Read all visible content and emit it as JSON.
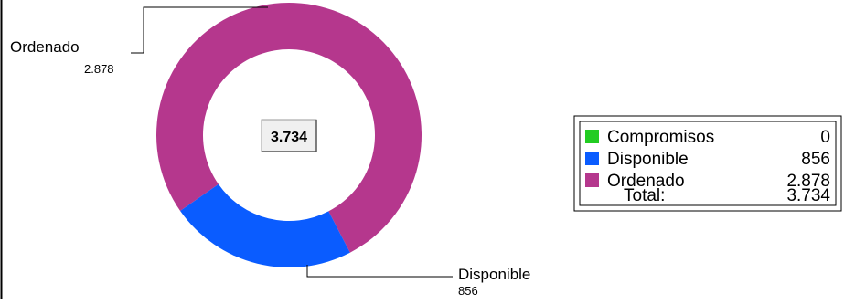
{
  "chart_data": {
    "type": "pie",
    "variant": "donut",
    "center_total": "3.734",
    "slices": [
      {
        "label": "Compromisos",
        "value": 0,
        "value_label": "0",
        "color": "#22cc22"
      },
      {
        "label": "Disponible",
        "value": 856,
        "value_label": "856",
        "color": "#0a5cff"
      },
      {
        "label": "Ordenado",
        "value": 2878,
        "value_label": "2.878",
        "color": "#b5378d"
      }
    ],
    "legend": {
      "placement": "right",
      "total_label": "Total:",
      "total_value": "3.734"
    }
  }
}
